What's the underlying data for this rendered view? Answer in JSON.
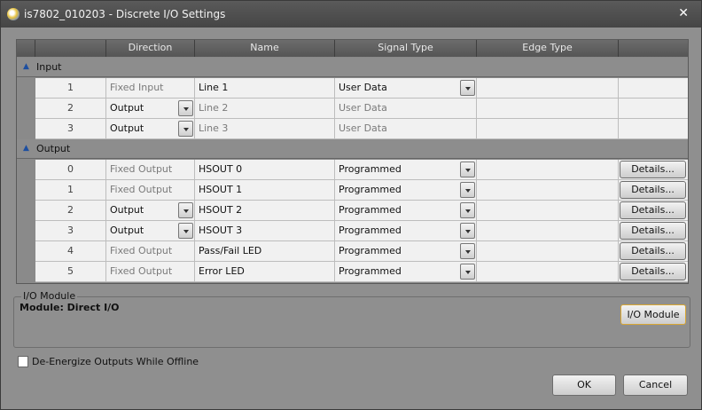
{
  "window": {
    "title": "is7802_010203 - Discrete I/O Settings",
    "close": "✕"
  },
  "grid": {
    "columns": [
      "",
      "Direction",
      "Name",
      "Signal Type",
      "Edge Type",
      ""
    ],
    "groups": [
      {
        "label": "Input",
        "rows": [
          {
            "num": "1",
            "direction": "Fixed Input",
            "direction_editable": false,
            "name": "Line 1",
            "signal": "User Data",
            "signal_editable": true,
            "details": ""
          },
          {
            "num": "2",
            "direction": "Output",
            "direction_editable": true,
            "name": "Line 2",
            "signal": "User Data",
            "signal_editable": false,
            "details": ""
          },
          {
            "num": "3",
            "direction": "Output",
            "direction_editable": true,
            "name": "Line 3",
            "signal": "User Data",
            "signal_editable": false,
            "details": ""
          }
        ]
      },
      {
        "label": "Output",
        "rows": [
          {
            "num": "0",
            "direction": "Fixed Output",
            "direction_editable": false,
            "name": "HSOUT 0",
            "signal": "Programmed",
            "signal_editable": true,
            "details": "Details..."
          },
          {
            "num": "1",
            "direction": "Fixed Output",
            "direction_editable": false,
            "name": "HSOUT 1",
            "signal": "Programmed",
            "signal_editable": true,
            "details": "Details..."
          },
          {
            "num": "2",
            "direction": "Output",
            "direction_editable": true,
            "name": "HSOUT 2",
            "signal": "Programmed",
            "signal_editable": true,
            "details": "Details..."
          },
          {
            "num": "3",
            "direction": "Output",
            "direction_editable": true,
            "name": "HSOUT 3",
            "signal": "Programmed",
            "signal_editable": true,
            "details": "Details..."
          },
          {
            "num": "4",
            "direction": "Fixed Output",
            "direction_editable": false,
            "name": "Pass/Fail LED",
            "signal": "Programmed",
            "signal_editable": true,
            "details": "Details..."
          },
          {
            "num": "5",
            "direction": "Fixed Output",
            "direction_editable": false,
            "name": "Error LED",
            "signal": "Programmed",
            "signal_editable": true,
            "details": "Details..."
          }
        ]
      }
    ]
  },
  "io_module": {
    "legend": "I/O Module",
    "module_text": "Module: Direct I/O",
    "button": "I/O Module"
  },
  "options": {
    "deenergize_label": "De-Energize Outputs While Offline",
    "deenergize_checked": false
  },
  "footer": {
    "ok": "OK",
    "cancel": "Cancel"
  }
}
